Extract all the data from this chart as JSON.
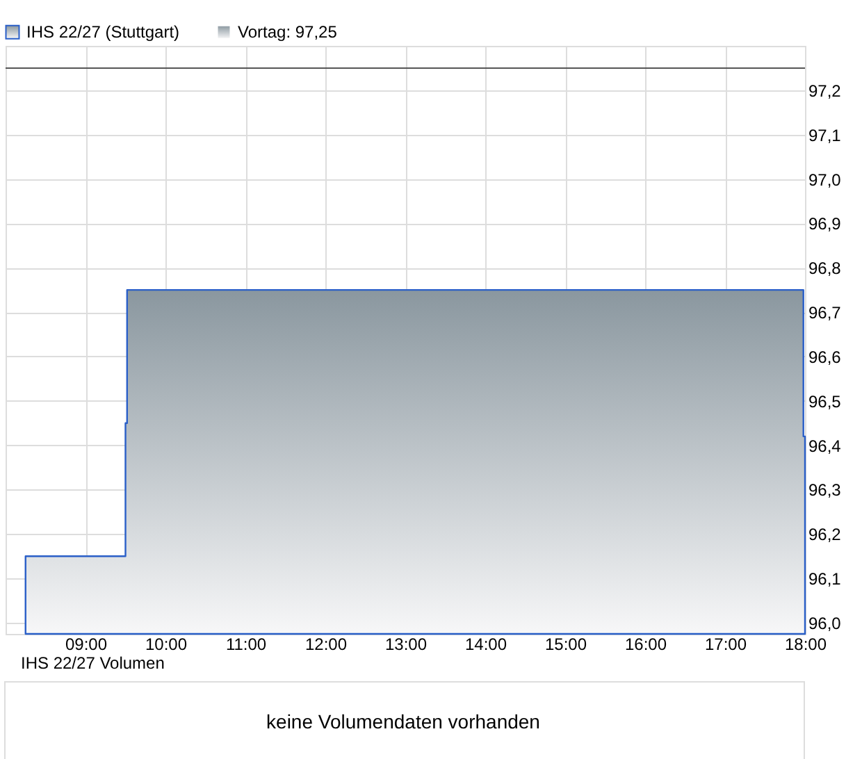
{
  "chart_data": [
    {
      "type": "step",
      "legend": "top left",
      "grid": true,
      "x": [
        8.25,
        9.5,
        9.52,
        17.98,
        18.0
      ],
      "series": [
        {
          "name": "IHS 22/27 (Stuttgart)",
          "type": "area",
          "color": "#2a5fc8",
          "values": [
            96.15,
            96.45,
            96.75,
            96.42,
            96.1
          ]
        }
      ],
      "xlim": [
        8.0,
        18.0
      ],
      "xticks": [
        {
          "value": 9,
          "label": "09:00"
        },
        {
          "value": 10,
          "label": "10:00"
        },
        {
          "value": 11,
          "label": "11:00"
        },
        {
          "value": 12,
          "label": "12:00"
        },
        {
          "value": 13,
          "label": "13:00"
        },
        {
          "value": 14,
          "label": "14:00"
        },
        {
          "value": 15,
          "label": "15:00"
        },
        {
          "value": 16,
          "label": "16:00"
        },
        {
          "value": 17,
          "label": "17:00"
        },
        {
          "value": 18,
          "label": "18:00"
        }
      ],
      "ylim": [
        95.975,
        97.3
      ],
      "yticks": [
        {
          "value": 96.0,
          "label": "96,0"
        },
        {
          "value": 96.1,
          "label": "96,1"
        },
        {
          "value": 96.2,
          "label": "96,2"
        },
        {
          "value": 96.3,
          "label": "96,3"
        },
        {
          "value": 96.4,
          "label": "96,4"
        },
        {
          "value": 96.5,
          "label": "96,5"
        },
        {
          "value": 96.6,
          "label": "96,6"
        },
        {
          "value": 96.7,
          "label": "96,7"
        },
        {
          "value": 96.8,
          "label": "96,8"
        },
        {
          "value": 96.9,
          "label": "96,9"
        },
        {
          "value": 97.0,
          "label": "97,0"
        },
        {
          "value": 97.1,
          "label": "97,1"
        },
        {
          "value": 97.2,
          "label": "97,2"
        }
      ],
      "ref_lines": [
        {
          "axis": "y",
          "value": 97.25,
          "label": "Vortag: 97,25",
          "color": "#555555"
        }
      ]
    },
    {
      "type": "other",
      "title": "IHS 22/27 Volumen",
      "annotations": [
        "keine Volumendaten vorhanden"
      ]
    }
  ]
}
